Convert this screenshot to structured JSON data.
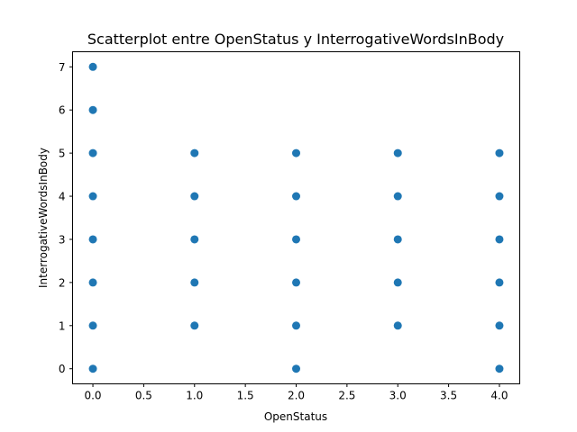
{
  "chart_data": {
    "type": "scatter",
    "title": "Scatterplot entre OpenStatus y InterrogativeWordsInBody",
    "xlabel": "OpenStatus",
    "ylabel": "InterrogativeWordsInBody",
    "xlim": [
      -0.2,
      4.2
    ],
    "ylim": [
      -0.35,
      7.35
    ],
    "xticks": [
      0.0,
      0.5,
      1.0,
      1.5,
      2.0,
      2.5,
      3.0,
      3.5,
      4.0
    ],
    "xtick_labels": [
      "0.0",
      "0.5",
      "1.0",
      "1.5",
      "2.0",
      "2.5",
      "3.0",
      "3.5",
      "4.0"
    ],
    "yticks": [
      0,
      1,
      2,
      3,
      4,
      5,
      6,
      7
    ],
    "ytick_labels": [
      "0",
      "1",
      "2",
      "3",
      "4",
      "5",
      "6",
      "7"
    ],
    "grid": false,
    "point_color": "#1f77b4",
    "series": [
      {
        "points": [
          {
            "x": 0,
            "y": 0
          },
          {
            "x": 0,
            "y": 1
          },
          {
            "x": 0,
            "y": 2
          },
          {
            "x": 0,
            "y": 3
          },
          {
            "x": 0,
            "y": 4
          },
          {
            "x": 0,
            "y": 5
          },
          {
            "x": 0,
            "y": 6
          },
          {
            "x": 0,
            "y": 7
          },
          {
            "x": 1,
            "y": 1
          },
          {
            "x": 1,
            "y": 2
          },
          {
            "x": 1,
            "y": 3
          },
          {
            "x": 1,
            "y": 4
          },
          {
            "x": 1,
            "y": 5
          },
          {
            "x": 2,
            "y": 0
          },
          {
            "x": 2,
            "y": 1
          },
          {
            "x": 2,
            "y": 2
          },
          {
            "x": 2,
            "y": 3
          },
          {
            "x": 2,
            "y": 4
          },
          {
            "x": 2,
            "y": 5
          },
          {
            "x": 3,
            "y": 1
          },
          {
            "x": 3,
            "y": 2
          },
          {
            "x": 3,
            "y": 3
          },
          {
            "x": 3,
            "y": 4
          },
          {
            "x": 3,
            "y": 5
          },
          {
            "x": 4,
            "y": 0
          },
          {
            "x": 4,
            "y": 1
          },
          {
            "x": 4,
            "y": 2
          },
          {
            "x": 4,
            "y": 3
          },
          {
            "x": 4,
            "y": 4
          },
          {
            "x": 4,
            "y": 5
          }
        ]
      }
    ]
  }
}
